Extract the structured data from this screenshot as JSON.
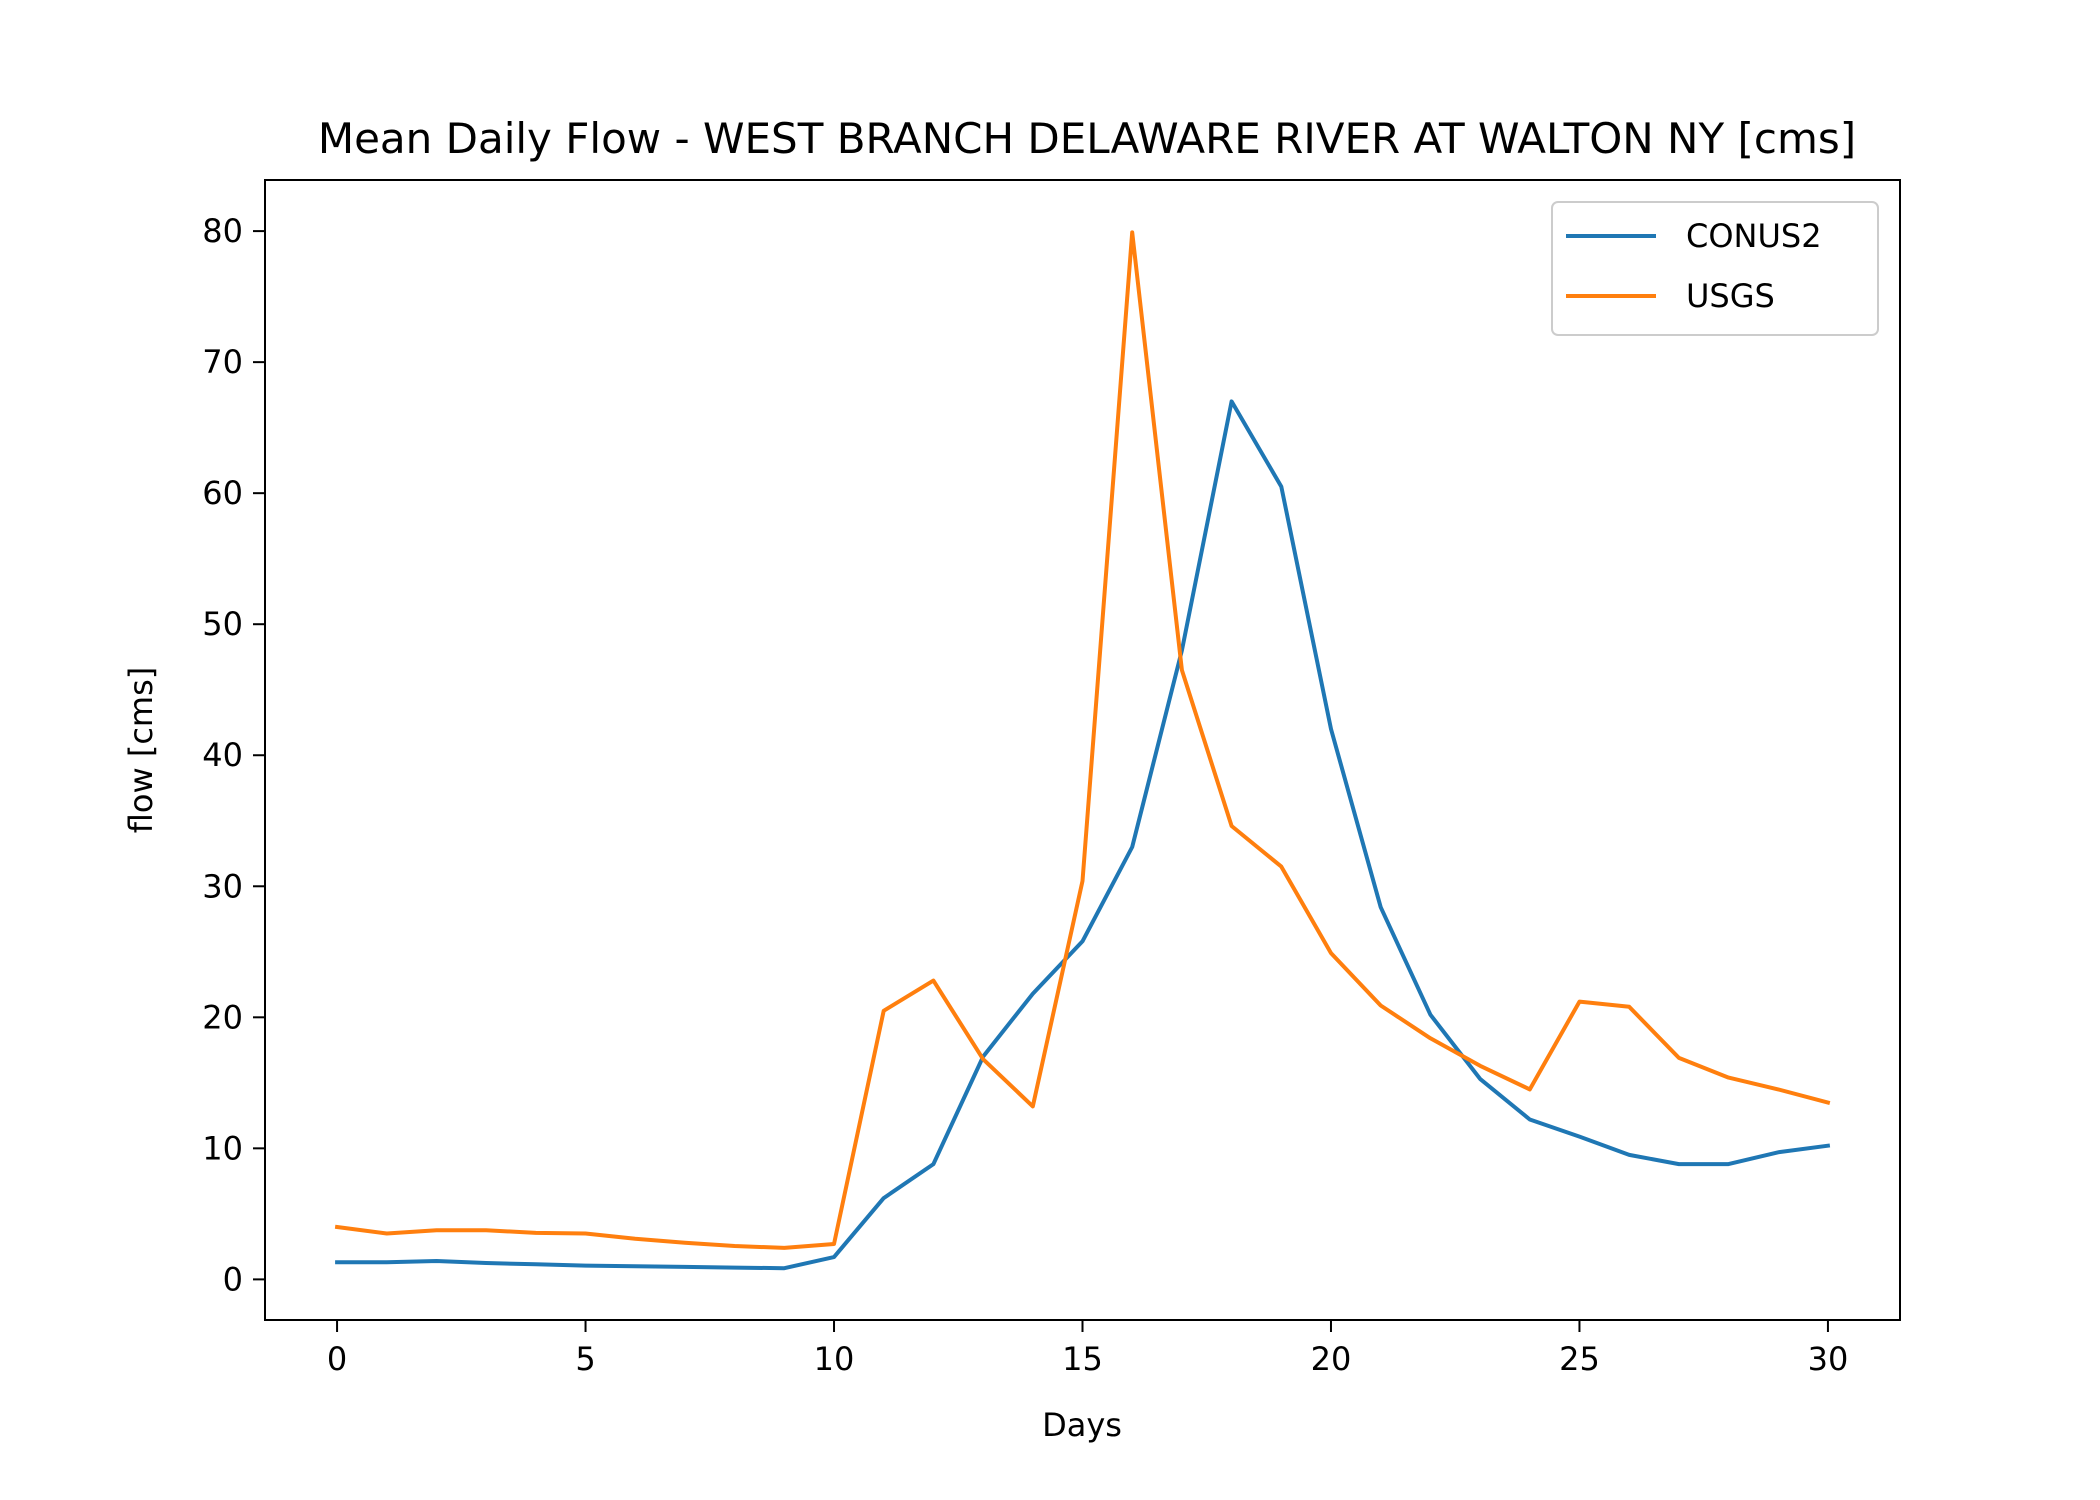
{
  "chart_data": {
    "type": "line",
    "title": "Mean Daily Flow - WEST BRANCH DELAWARE RIVER AT WALTON NY [cms]",
    "xlabel": "Days",
    "ylabel": "flow [cms]",
    "xlim": [
      -1.45,
      31.45
    ],
    "ylim": [
      -3.1,
      83.9
    ],
    "xticks": [
      0,
      5,
      10,
      15,
      20,
      25,
      30
    ],
    "yticks": [
      0,
      10,
      20,
      30,
      40,
      50,
      60,
      70,
      80
    ],
    "grid": false,
    "legend": "top-right",
    "x": [
      0,
      1,
      2,
      3,
      4,
      5,
      6,
      7,
      8,
      9,
      10,
      11,
      12,
      13,
      14,
      15,
      16,
      17,
      18,
      19,
      20,
      21,
      22,
      23,
      24,
      25,
      26,
      27,
      28,
      29,
      30
    ],
    "series": [
      {
        "name": "CONUS2",
        "color": "#1f77b4",
        "values": [
          1.3,
          1.3,
          1.4,
          1.25,
          1.15,
          1.05,
          1.0,
          0.95,
          0.9,
          0.85,
          1.7,
          6.2,
          8.8,
          17.0,
          21.8,
          25.8,
          33.0,
          48.0,
          67.0,
          60.5,
          42.0,
          28.4,
          20.2,
          15.3,
          12.2,
          10.9,
          9.5,
          8.8,
          8.8,
          9.7,
          10.2
        ]
      },
      {
        "name": "USGS",
        "color": "#ff7f0e",
        "values": [
          4.0,
          3.5,
          3.75,
          3.75,
          3.55,
          3.5,
          3.1,
          2.8,
          2.55,
          2.4,
          2.7,
          20.5,
          22.8,
          16.8,
          13.2,
          30.4,
          79.9,
          46.5,
          34.6,
          31.5,
          24.9,
          20.9,
          18.4,
          16.3,
          14.5,
          21.2,
          20.8,
          16.9,
          15.4,
          14.5,
          13.5
        ]
      }
    ]
  }
}
